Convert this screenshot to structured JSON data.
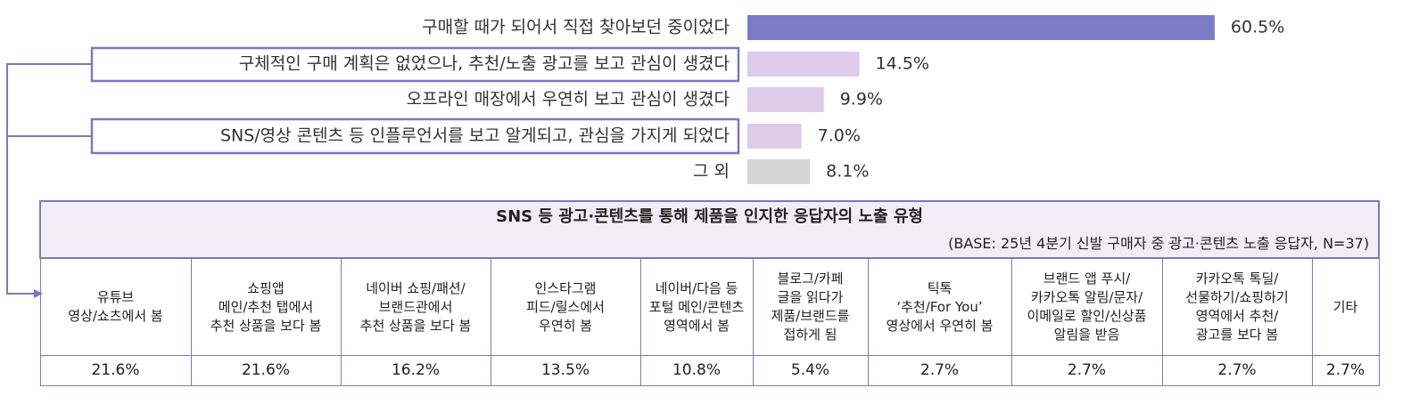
{
  "chart_data": {
    "type": "bar",
    "orientation": "horizontal",
    "categories": [
      "구매할 때가 되어서 직접 찾아보던 중이었다",
      "구체적인 구매 계획은 없었으나, 추천/노출 광고를 보고 관심이 생겼다",
      "오프라인 매장에서 우연히 보고 관심이 생겼다",
      "SNS/영상 콘텐츠 등 인플루언서를 보고 알게되고, 관심을 가지게 되었다",
      "그 외"
    ],
    "values": [
      60.5,
      14.5,
      9.9,
      7.0,
      8.1
    ],
    "value_labels": [
      "60.5%",
      "14.5%",
      "9.9%",
      "7.0%",
      "8.1%"
    ],
    "colors": [
      "#7b7bc6",
      "#dccbe9",
      "#dccbe9",
      "#dccbe9",
      "#d6d6d6"
    ]
  },
  "table": {
    "title": "SNS 등 광고·콘텐츠를 통해 제품을 인지한 응답자의 노출 유형",
    "subtitle": "(BASE: 25년 4분기 신발 구매자 중 광고·콘텐츠 노출 응답자, N=37)",
    "headers": [
      "유튜브\n영상/쇼츠에서 봄",
      "쇼핑앱\n메인/추천 탭에서\n추천 상품을 보다 봄",
      "네이버 쇼핑/패션/\n브랜드관에서\n추천 상품을 보다 봄",
      "인스타그램\n피드/릴스에서\n우연히 봄",
      "네이버/다음 등\n포털 메인/콘텐츠\n영역에서 봄",
      "블로그/카페\n글을 읽다가\n제품/브랜드를\n접하게 됨",
      "틱톡\n‘추천/For You’\n영상에서 우연히 봄",
      "브랜드 앱 푸시/\n카카오톡 알림/문자/\n이메일로 할인/신상품\n알림을 받음",
      "카카오톡 톡딜/\n선물하기/쇼핑하기\n영역에서 추천/\n광고를 보다 봄",
      "기타"
    ],
    "values": [
      "21.6%",
      "21.6%",
      "16.2%",
      "13.5%",
      "10.8%",
      "5.4%",
      "2.7%",
      "2.7%",
      "2.7%",
      "2.7%"
    ]
  }
}
